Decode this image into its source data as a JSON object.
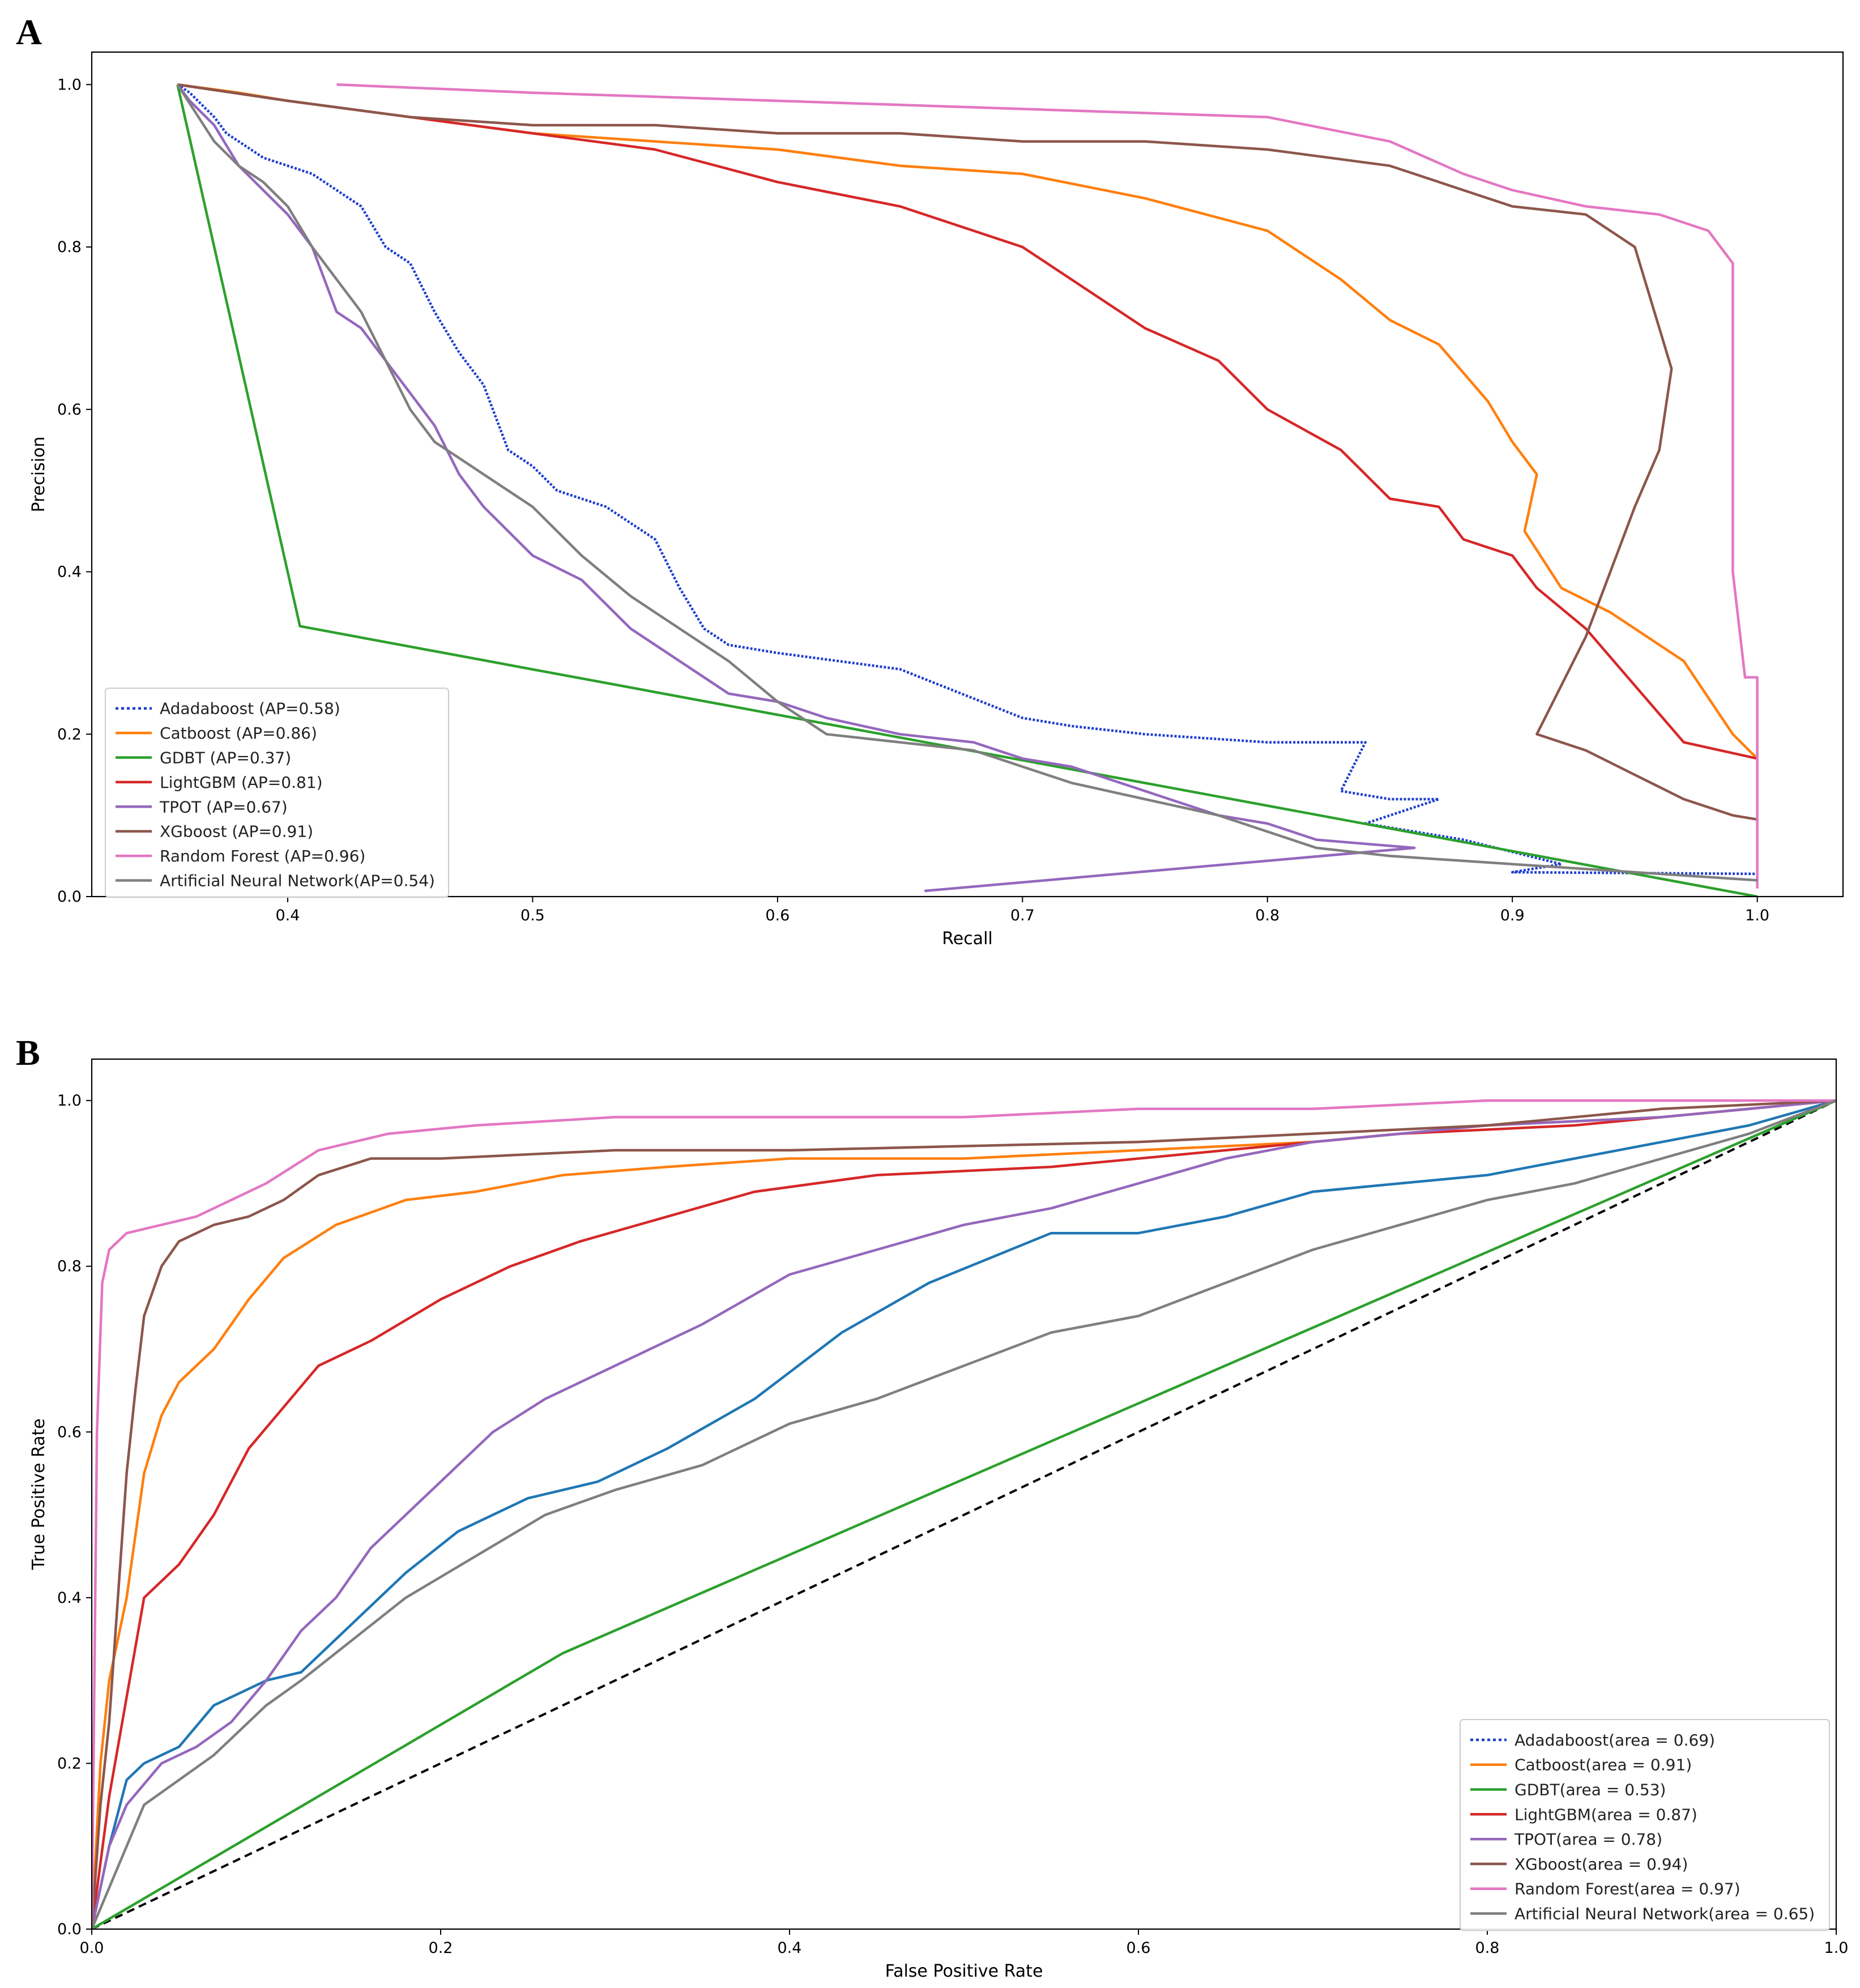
{
  "colors": {
    "Adadaboost": "#1f3fd0",
    "Catboost": "#ff7f0e",
    "GDBT": "#2ca02c",
    "LightGBM": "#d62728",
    "TPOT": "#9467bd",
    "XGboost": "#8c564b",
    "Random Forest": "#e377c2",
    "Artificial Neural Network": "#7f7f7f",
    "Adadaboost ROC": "#1f77b4",
    "diagonal": "#000000"
  },
  "chart_data": [
    {
      "panel": "A",
      "type": "line",
      "title": "",
      "xlabel": "Recall",
      "ylabel": "Precision",
      "xlim": [
        0.32,
        1.035
      ],
      "ylim": [
        0.0,
        1.04
      ],
      "xticks": [
        "0.4",
        "0.5",
        "0.6",
        "0.7",
        "0.8",
        "0.9",
        "1.0"
      ],
      "yticks": [
        "0.0",
        "0.2",
        "0.4",
        "0.6",
        "0.8",
        "1.0"
      ],
      "legend_position": "lower-left",
      "series": [
        {
          "name": "Adadaboost",
          "legend": "Adadaboost (AP=0.58)",
          "style": "dotted",
          "x": [
            0.355,
            0.36,
            0.37,
            0.375,
            0.38,
            0.39,
            0.4,
            0.41,
            0.42,
            0.43,
            0.44,
            0.45,
            0.46,
            0.47,
            0.48,
            0.49,
            0.5,
            0.51,
            0.53,
            0.55,
            0.56,
            0.57,
            0.58,
            0.6,
            0.65,
            0.7,
            0.72,
            0.75,
            0.8,
            0.84,
            0.83,
            0.85,
            0.87,
            0.84,
            0.88,
            0.92,
            0.9,
            1.0
          ],
          "y": [
            1.0,
            0.99,
            0.96,
            0.94,
            0.93,
            0.91,
            0.9,
            0.89,
            0.87,
            0.85,
            0.8,
            0.78,
            0.72,
            0.67,
            0.63,
            0.55,
            0.53,
            0.5,
            0.48,
            0.44,
            0.38,
            0.33,
            0.31,
            0.3,
            0.28,
            0.22,
            0.21,
            0.2,
            0.19,
            0.19,
            0.13,
            0.12,
            0.12,
            0.09,
            0.07,
            0.04,
            0.03,
            0.028
          ]
        },
        {
          "name": "Catboost",
          "legend": "Catboost (AP=0.86)",
          "style": "solid",
          "x": [
            0.355,
            0.38,
            0.4,
            0.45,
            0.5,
            0.55,
            0.6,
            0.65,
            0.7,
            0.75,
            0.8,
            0.83,
            0.85,
            0.87,
            0.89,
            0.9,
            0.91,
            0.905,
            0.92,
            0.94,
            0.97,
            0.99,
            1.0
          ],
          "y": [
            1.0,
            0.99,
            0.98,
            0.96,
            0.94,
            0.93,
            0.92,
            0.9,
            0.89,
            0.86,
            0.82,
            0.76,
            0.71,
            0.68,
            0.61,
            0.56,
            0.52,
            0.45,
            0.38,
            0.35,
            0.29,
            0.2,
            0.17
          ]
        },
        {
          "name": "GDBT",
          "legend": "GDBT (AP=0.37)",
          "style": "solid",
          "x": [
            0.355,
            0.405,
            1.0
          ],
          "y": [
            1.0,
            0.333,
            0.0
          ]
        },
        {
          "name": "LightGBM",
          "legend": "LightGBM (AP=0.81)",
          "style": "solid",
          "x": [
            0.355,
            0.4,
            0.45,
            0.5,
            0.55,
            0.6,
            0.65,
            0.7,
            0.75,
            0.78,
            0.8,
            0.83,
            0.85,
            0.87,
            0.88,
            0.9,
            0.91,
            0.93,
            0.95,
            0.97,
            1.0
          ],
          "y": [
            1.0,
            0.98,
            0.96,
            0.94,
            0.92,
            0.88,
            0.85,
            0.8,
            0.7,
            0.66,
            0.6,
            0.55,
            0.49,
            0.48,
            0.44,
            0.42,
            0.38,
            0.33,
            0.26,
            0.19,
            0.17
          ]
        },
        {
          "name": "TPOT",
          "legend": "TPOT (AP=0.67)",
          "style": "solid",
          "x": [
            0.355,
            0.36,
            0.37,
            0.38,
            0.39,
            0.4,
            0.41,
            0.42,
            0.43,
            0.44,
            0.45,
            0.46,
            0.47,
            0.48,
            0.49,
            0.5,
            0.52,
            0.54,
            0.56,
            0.58,
            0.6,
            0.62,
            0.65,
            0.68,
            0.7,
            0.72,
            0.75,
            0.78,
            0.8,
            0.82,
            0.86,
            0.66
          ],
          "y": [
            1.0,
            0.98,
            0.95,
            0.9,
            0.87,
            0.84,
            0.8,
            0.72,
            0.7,
            0.66,
            0.62,
            0.58,
            0.52,
            0.48,
            0.45,
            0.42,
            0.39,
            0.33,
            0.29,
            0.25,
            0.24,
            0.22,
            0.2,
            0.19,
            0.17,
            0.16,
            0.13,
            0.1,
            0.09,
            0.07,
            0.06,
            0.007
          ]
        },
        {
          "name": "XGboost",
          "legend": "XGboost (AP=0.91)",
          "style": "solid",
          "x": [
            0.355,
            0.4,
            0.45,
            0.5,
            0.55,
            0.6,
            0.65,
            0.7,
            0.75,
            0.8,
            0.85,
            0.88,
            0.9,
            0.93,
            0.95,
            0.96,
            0.965,
            0.96,
            0.95,
            0.94,
            0.93,
            0.91,
            0.93,
            0.95,
            0.97,
            0.99,
            1.0
          ],
          "y": [
            1.0,
            0.98,
            0.96,
            0.95,
            0.95,
            0.94,
            0.94,
            0.93,
            0.93,
            0.92,
            0.9,
            0.87,
            0.85,
            0.84,
            0.8,
            0.7,
            0.65,
            0.55,
            0.48,
            0.4,
            0.32,
            0.2,
            0.18,
            0.15,
            0.12,
            0.1,
            0.095
          ]
        },
        {
          "name": "Random Forest",
          "legend": "Random Forest (AP=0.96)",
          "style": "solid",
          "x": [
            0.42,
            0.5,
            0.6,
            0.7,
            0.8,
            0.85,
            0.88,
            0.9,
            0.93,
            0.96,
            0.98,
            0.99,
            0.99,
            0.995,
            1.0,
            1.0
          ],
          "y": [
            1.0,
            0.99,
            0.98,
            0.97,
            0.96,
            0.93,
            0.89,
            0.87,
            0.85,
            0.84,
            0.82,
            0.78,
            0.4,
            0.27,
            0.27,
            0.01
          ]
        },
        {
          "name": "Artificial Neural Network",
          "legend": "Artificial Neural Network(AP=0.54)",
          "style": "solid",
          "x": [
            0.355,
            0.37,
            0.38,
            0.39,
            0.4,
            0.41,
            0.42,
            0.43,
            0.44,
            0.45,
            0.46,
            0.47,
            0.48,
            0.5,
            0.52,
            0.54,
            0.56,
            0.58,
            0.6,
            0.62,
            0.65,
            0.68,
            0.7,
            0.72,
            0.75,
            0.78,
            0.8,
            0.82,
            0.85,
            0.9,
            0.95,
            1.0
          ],
          "y": [
            1.0,
            0.93,
            0.9,
            0.88,
            0.85,
            0.8,
            0.76,
            0.72,
            0.66,
            0.6,
            0.56,
            0.54,
            0.52,
            0.48,
            0.42,
            0.37,
            0.33,
            0.29,
            0.24,
            0.2,
            0.19,
            0.18,
            0.16,
            0.14,
            0.12,
            0.1,
            0.08,
            0.06,
            0.05,
            0.04,
            0.03,
            0.02
          ]
        }
      ]
    },
    {
      "panel": "B",
      "type": "line",
      "title": "",
      "xlabel": "False Positive Rate",
      "ylabel": "True Positive Rate",
      "xlim": [
        0.0,
        1.0
      ],
      "ylim": [
        0.0,
        1.05
      ],
      "xticks": [
        "0.0",
        "0.2",
        "0.4",
        "0.6",
        "0.8",
        "1.0"
      ],
      "yticks": [
        "0.0",
        "0.2",
        "0.4",
        "0.6",
        "0.8",
        "1.0"
      ],
      "legend_position": "lower-right",
      "series": [
        {
          "name": "Adadaboost",
          "legend": "Adadaboost(area = 0.69)",
          "style": "solid",
          "x": [
            0.0,
            0.01,
            0.02,
            0.03,
            0.05,
            0.07,
            0.1,
            0.12,
            0.15,
            0.18,
            0.21,
            0.25,
            0.29,
            0.33,
            0.38,
            0.43,
            0.48,
            0.55,
            0.6,
            0.65,
            0.7,
            0.75,
            0.8,
            0.85,
            0.9,
            0.95,
            1.0
          ],
          "y": [
            0.0,
            0.1,
            0.18,
            0.2,
            0.22,
            0.27,
            0.3,
            0.31,
            0.37,
            0.43,
            0.48,
            0.52,
            0.54,
            0.58,
            0.64,
            0.72,
            0.78,
            0.84,
            0.84,
            0.86,
            0.89,
            0.9,
            0.91,
            0.93,
            0.95,
            0.97,
            1.0
          ]
        },
        {
          "name": "Catboost",
          "legend": "Catboost(area = 0.91)",
          "style": "solid",
          "x": [
            0.0,
            0.005,
            0.01,
            0.02,
            0.03,
            0.04,
            0.05,
            0.07,
            0.09,
            0.11,
            0.14,
            0.18,
            0.22,
            0.27,
            0.33,
            0.4,
            0.5,
            0.6,
            0.7,
            0.8,
            0.9,
            1.0
          ],
          "y": [
            0.0,
            0.2,
            0.3,
            0.4,
            0.55,
            0.62,
            0.66,
            0.7,
            0.76,
            0.81,
            0.85,
            0.88,
            0.89,
            0.91,
            0.92,
            0.93,
            0.93,
            0.94,
            0.95,
            0.97,
            0.98,
            1.0
          ]
        },
        {
          "name": "GDBT",
          "legend": "GDBT(area = 0.53)",
          "style": "solid",
          "x": [
            0.0,
            0.27,
            1.0
          ],
          "y": [
            0.0,
            0.333,
            1.0
          ]
        },
        {
          "name": "LightGBM",
          "legend": "LightGBM(area = 0.87)",
          "style": "solid",
          "x": [
            0.0,
            0.01,
            0.02,
            0.03,
            0.05,
            0.07,
            0.09,
            0.11,
            0.13,
            0.16,
            0.2,
            0.24,
            0.28,
            0.33,
            0.38,
            0.45,
            0.55,
            0.65,
            0.75,
            0.85,
            0.95,
            1.0
          ],
          "y": [
            0.0,
            0.16,
            0.28,
            0.4,
            0.44,
            0.5,
            0.58,
            0.63,
            0.68,
            0.71,
            0.76,
            0.8,
            0.83,
            0.86,
            0.89,
            0.91,
            0.92,
            0.94,
            0.96,
            0.97,
            0.99,
            1.0
          ]
        },
        {
          "name": "TPOT",
          "legend": "TPOT(area = 0.78)",
          "style": "solid",
          "x": [
            0.0,
            0.01,
            0.02,
            0.04,
            0.06,
            0.08,
            0.1,
            0.12,
            0.14,
            0.16,
            0.18,
            0.2,
            0.23,
            0.26,
            0.3,
            0.35,
            0.4,
            0.45,
            0.5,
            0.55,
            0.6,
            0.65,
            0.7,
            0.75,
            0.8,
            0.9,
            1.0
          ],
          "y": [
            0.0,
            0.1,
            0.15,
            0.2,
            0.22,
            0.25,
            0.3,
            0.36,
            0.4,
            0.46,
            0.5,
            0.54,
            0.6,
            0.64,
            0.68,
            0.73,
            0.79,
            0.82,
            0.85,
            0.87,
            0.9,
            0.93,
            0.95,
            0.96,
            0.97,
            0.98,
            1.0
          ]
        },
        {
          "name": "XGboost",
          "legend": "XGboost(area = 0.94)",
          "style": "solid",
          "x": [
            0.0,
            0.005,
            0.01,
            0.015,
            0.02,
            0.025,
            0.03,
            0.04,
            0.05,
            0.07,
            0.09,
            0.11,
            0.13,
            0.16,
            0.2,
            0.3,
            0.4,
            0.6,
            0.8,
            0.9,
            1.0
          ],
          "y": [
            0.0,
            0.15,
            0.25,
            0.4,
            0.55,
            0.65,
            0.74,
            0.8,
            0.83,
            0.85,
            0.86,
            0.88,
            0.91,
            0.93,
            0.93,
            0.94,
            0.94,
            0.95,
            0.97,
            0.99,
            1.0
          ]
        },
        {
          "name": "Random Forest",
          "legend": "Random Forest(area = 0.97)",
          "style": "solid",
          "x": [
            0.0,
            0.003,
            0.006,
            0.01,
            0.02,
            0.04,
            0.06,
            0.08,
            0.1,
            0.13,
            0.17,
            0.22,
            0.3,
            0.4,
            0.5,
            0.6,
            0.7,
            0.8,
            0.9,
            1.0
          ],
          "y": [
            0.0,
            0.6,
            0.78,
            0.82,
            0.84,
            0.85,
            0.86,
            0.88,
            0.9,
            0.94,
            0.96,
            0.97,
            0.98,
            0.98,
            0.98,
            0.99,
            0.99,
            1.0,
            1.0,
            1.0
          ]
        },
        {
          "name": "Artificial Neural Network",
          "legend": "Artificial Neural Network(area = 0.65)",
          "style": "solid",
          "x": [
            0.0,
            0.01,
            0.02,
            0.03,
            0.05,
            0.07,
            0.1,
            0.12,
            0.15,
            0.18,
            0.22,
            0.26,
            0.3,
            0.35,
            0.4,
            0.45,
            0.5,
            0.55,
            0.6,
            0.65,
            0.7,
            0.75,
            0.8,
            0.85,
            0.9,
            0.95,
            1.0
          ],
          "y": [
            0.0,
            0.05,
            0.1,
            0.15,
            0.18,
            0.21,
            0.27,
            0.3,
            0.35,
            0.4,
            0.45,
            0.5,
            0.53,
            0.56,
            0.61,
            0.64,
            0.68,
            0.72,
            0.74,
            0.78,
            0.82,
            0.85,
            0.88,
            0.9,
            0.93,
            0.96,
            1.0
          ]
        }
      ],
      "reference_line": {
        "name": "diagonal",
        "x": [
          0.0,
          1.0
        ],
        "y": [
          0.0,
          1.0
        ],
        "style": "dashed"
      }
    }
  ],
  "panels": {
    "a": {
      "letter": "A"
    },
    "b": {
      "letter": "B"
    }
  }
}
